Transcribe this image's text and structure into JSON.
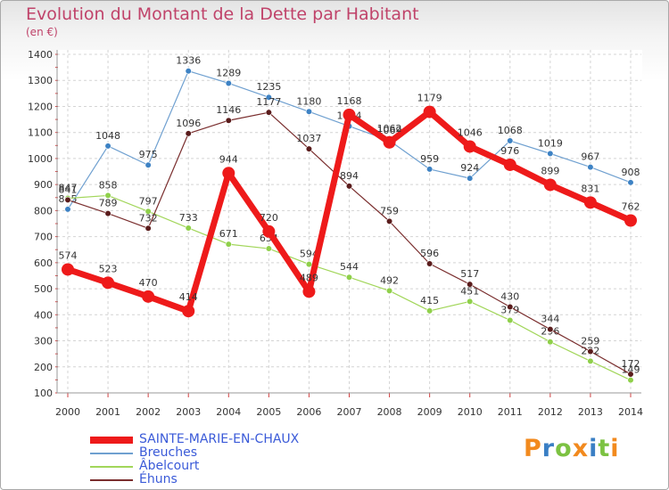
{
  "title": "Evolution du Montant de la Dette par Habitant",
  "subtitle": "(en €)",
  "logo": "Proxiti",
  "chart_data": {
    "type": "line",
    "title": "Evolution du Montant de la Dette par Habitant",
    "ylabel": "(en €)",
    "xlabel": "",
    "x": [
      "2000",
      "2001",
      "2002",
      "2003",
      "2004",
      "2005",
      "2006",
      "2007",
      "2008",
      "2009",
      "2010",
      "2011",
      "2012",
      "2013",
      "2014"
    ],
    "ylim": [
      100,
      1400
    ],
    "yticks": [
      100,
      200,
      300,
      400,
      500,
      600,
      700,
      800,
      900,
      1000,
      1100,
      1200,
      1300,
      1400
    ],
    "grid": true,
    "legend_position": "bottom-left",
    "series": [
      {
        "name": "Breuches",
        "color": "#6fa0d0",
        "marker": "#3d82c4",
        "values": [
          805,
          1048,
          975,
          1336,
          1289,
          1235,
          1180,
          1124,
          1069,
          959,
          924,
          1068,
          1019,
          967,
          908
        ],
        "labels": [
          "805",
          "1048",
          "975",
          "1336",
          "1289",
          "1235",
          "1180",
          "1124",
          "1069",
          "959",
          "924",
          "1068",
          "1019",
          "967",
          "908"
        ]
      },
      {
        "name": "Abelcourt",
        "color": "#a2d65a",
        "marker": "#8fd04a",
        "values": [
          847,
          858,
          797,
          733,
          671,
          654,
          594,
          544,
          492,
          415,
          451,
          379,
          296,
          222,
          149
        ],
        "labels": [
          "847",
          "858",
          "797",
          "733",
          "671",
          "654",
          "594",
          "544",
          "492",
          "415",
          "451",
          "379",
          "296",
          "222",
          "149"
        ]
      },
      {
        "name": "Éhuns",
        "color": "#7a2e2e",
        "marker": "#5a1c1c",
        "values": [
          841,
          789,
          732,
          1096,
          1146,
          1177,
          1037,
          894,
          759,
          596,
          517,
          430,
          344,
          259,
          172
        ],
        "labels": [
          "841",
          "789",
          "732",
          "1096",
          "1146",
          "1177",
          "1037",
          "894",
          "759",
          "596",
          "517",
          "430",
          "344",
          "259",
          "172"
        ]
      },
      {
        "name": "SAINTE-MARIE-EN-CHAUX",
        "color": "#ee1a1a",
        "marker": "#ee1a1a",
        "values": [
          574,
          523,
          470,
          414,
          944,
          720,
          489,
          1168,
          1062,
          1179,
          1046,
          976,
          899,
          831,
          762
        ],
        "labels": [
          "574",
          "523",
          "470",
          "414",
          "944",
          "720",
          "489",
          "1168",
          "1062",
          "1179",
          "1046",
          "976",
          "899",
          "831",
          "762"
        ]
      }
    ],
    "legend": [
      "SAINTE-MARIE-EN-CHAUX",
      "Breuches",
      "Abelcourt",
      "Éhuns"
    ]
  },
  "legend_items": [
    {
      "name": "SAINTE-MARIE-EN-CHAUX",
      "color": "#ee1a1a"
    },
    {
      "name": "Breuches",
      "color": "#6fa0d0"
    },
    {
      "name": "Âbelcourt",
      "color": "#a2d65a"
    },
    {
      "name": "Éhuns",
      "color": "#7a2e2e"
    }
  ]
}
